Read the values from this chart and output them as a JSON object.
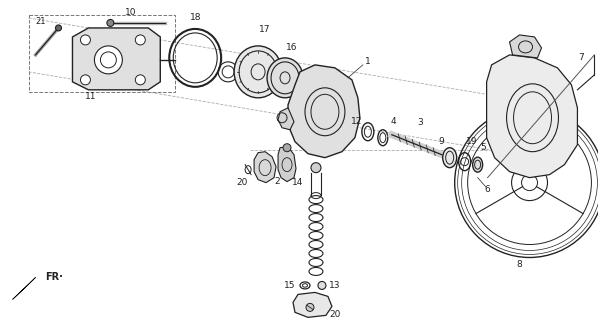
{
  "bg_color": "#ffffff",
  "lc": "#222222",
  "gray": "#888888",
  "light_gray": "#cccccc",
  "fig_w": 5.99,
  "fig_h": 3.2,
  "dpi": 100
}
